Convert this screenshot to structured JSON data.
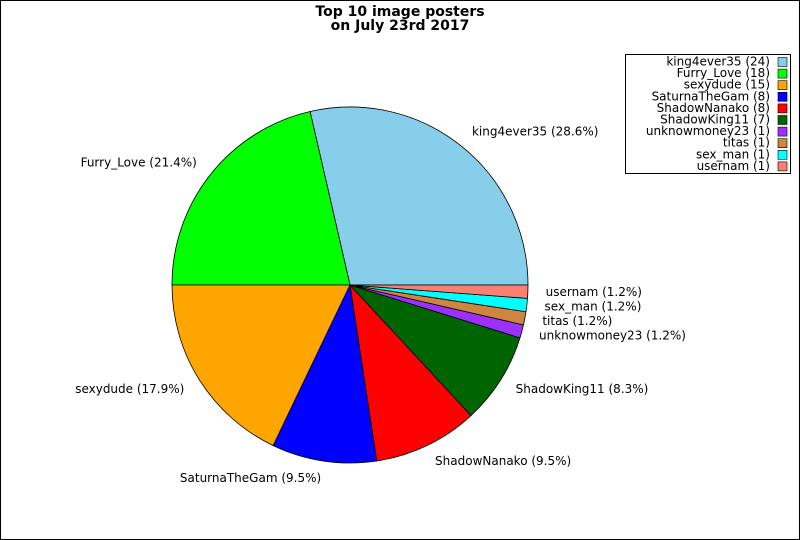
{
  "chart_data": {
    "type": "pie",
    "title_lines": [
      "Top 10 image posters",
      "on July 23rd 2017"
    ],
    "values": [
      28.6,
      21.4,
      17.9,
      9.5,
      9.5,
      8.3,
      1.2,
      1.2,
      1.2,
      1.2
    ],
    "value_labels": [
      "king4ever35 (28.6%)",
      "Furry_Love (21.4%)",
      "sexydude (17.9%)",
      "SaturnaTheGam (9.5%)",
      "ShadowNanako (9.5%)",
      "ShadowKing11 (8.3%)",
      "unknowmoney23 (1.2%)",
      "titas (1.2%)",
      "sex_man (1.2%)",
      "usernam (1.2%)"
    ],
    "legend_labels": [
      "king4ever35 (24)",
      "Furry_Love (18)",
      "sexydude (15)",
      "SaturnaTheGam (8)",
      "ShadowNanako (8)",
      "ShadowKing11 (7)",
      "unknowmoney23 (1)",
      "titas (1)",
      "sex_man (1)",
      "usernam (1)"
    ],
    "colors": [
      "#87ceeb",
      "#00ff00",
      "#ffa500",
      "#0000ff",
      "#ff0000",
      "#006400",
      "#9b30ff",
      "#cd853f",
      "#00ffff",
      "#fa8072"
    ],
    "legend_position": "upper right"
  }
}
